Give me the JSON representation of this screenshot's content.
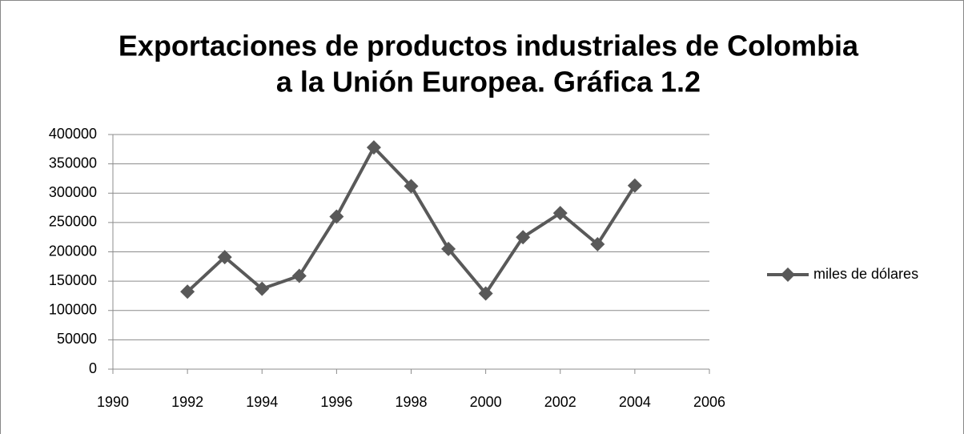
{
  "chart_data": {
    "type": "line",
    "title": [
      "Exportaciones de productos industriales de Colombia",
      "a la Unión Europea. Gráfica 1.2"
    ],
    "x": [
      1992,
      1993,
      1994,
      1995,
      1996,
      1997,
      1998,
      1999,
      2000,
      2001,
      2002,
      2003,
      2004
    ],
    "series": [
      {
        "name": "miles de dólares",
        "color": "#595959",
        "values": [
          132000,
          191000,
          137000,
          159000,
          260000,
          378000,
          312000,
          205000,
          129000,
          225000,
          266000,
          213000,
          313000
        ]
      }
    ],
    "xlim": [
      1990,
      2006
    ],
    "xticks": [
      1990,
      1992,
      1994,
      1996,
      1998,
      2000,
      2002,
      2004,
      2006
    ],
    "ylim": [
      0,
      400000
    ],
    "yticks": [
      0,
      50000,
      100000,
      150000,
      200000,
      250000,
      300000,
      350000,
      400000
    ],
    "grid": true,
    "legend": "right"
  }
}
